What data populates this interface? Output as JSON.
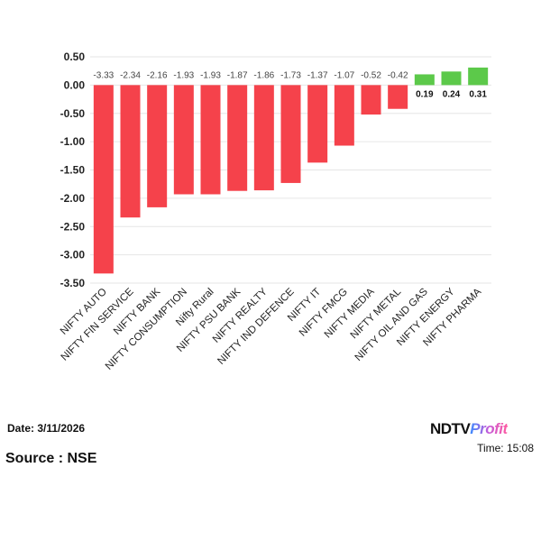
{
  "chart_data": {
    "type": "bar",
    "categories": [
      "NIFTY AUTO",
      "NIFTY FIN SERVICE",
      "NIFTY BANK",
      "NIFTY CONSUMPTION",
      "Nifty Rural",
      "NIFTY PSU BANK",
      "NIFTY REALTY",
      "NIFTY IND DEFENCE",
      "NIFTY IT",
      "NIFTY FMCG",
      "NIFTY MEDIA",
      "NIFTY METAL",
      "NIFTY OIL AND GAS",
      "NIFTY ENERGY",
      "NIFTY PHARMA"
    ],
    "values": [
      -3.33,
      -2.34,
      -2.16,
      -1.93,
      -1.93,
      -1.87,
      -1.86,
      -1.73,
      -1.37,
      -1.07,
      -0.52,
      -0.42,
      0.19,
      0.24,
      0.31
    ],
    "ylim": [
      -3.5,
      0.5
    ],
    "yticks": [
      "0.50",
      "0.00",
      "-0.50",
      "-1.00",
      "-1.50",
      "-2.00",
      "-2.50",
      "-3.00",
      "-3.50"
    ],
    "grid": true,
    "colors": {
      "negative": "#f5424b",
      "positive": "#5cc94a"
    }
  },
  "footer": {
    "date": "Date: 3/11/2026",
    "time": "Time: 15:08",
    "source": "Source : NSE",
    "logo_ndtv": "NDTV",
    "logo_profit": "Profit"
  }
}
